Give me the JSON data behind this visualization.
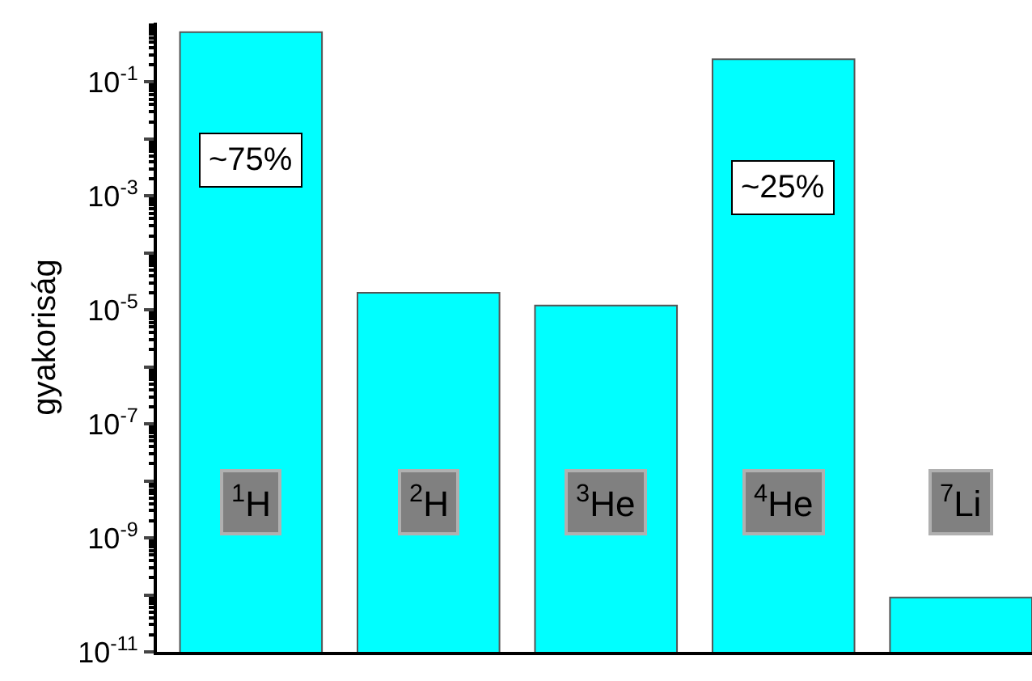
{
  "chart_data": {
    "type": "bar",
    "ylabel": "gyakoriság",
    "log": "y",
    "categories": [
      "$^{1}$H",
      "$^{2}$H",
      "$^{3}$He",
      "$^{4}$He",
      "$^{7}$Li"
    ],
    "values": [
      0.75,
      2e-05,
      1.2e-05,
      0.25,
      9e-11
    ],
    "value_labels": [
      "~75%",
      null,
      null,
      "~25%",
      null
    ],
    "color": "#00ffff",
    "ylim": [
      1e-11,
      1.1
    ],
    "yticks": [
      {
        "value": 0.1,
        "label": "10$^{-1}$"
      },
      {
        "value": 0.01,
        "label": null
      },
      {
        "value": 0.001,
        "label": "10$^{-3}$"
      },
      {
        "value": 0.0001,
        "label": null
      },
      {
        "value": 1e-05,
        "label": "10$^{-5}$"
      },
      {
        "value": 1e-06,
        "label": null
      },
      {
        "value": 1e-07,
        "label": "10$^{-7}$"
      },
      {
        "value": 1e-08,
        "label": null
      },
      {
        "value": 1e-09,
        "label": "10$^{-9}$"
      },
      {
        "value": 1e-10,
        "label": null
      },
      {
        "value": 1e-11,
        "label": "10$^{-11}$"
      }
    ],
    "marker": "none"
  }
}
